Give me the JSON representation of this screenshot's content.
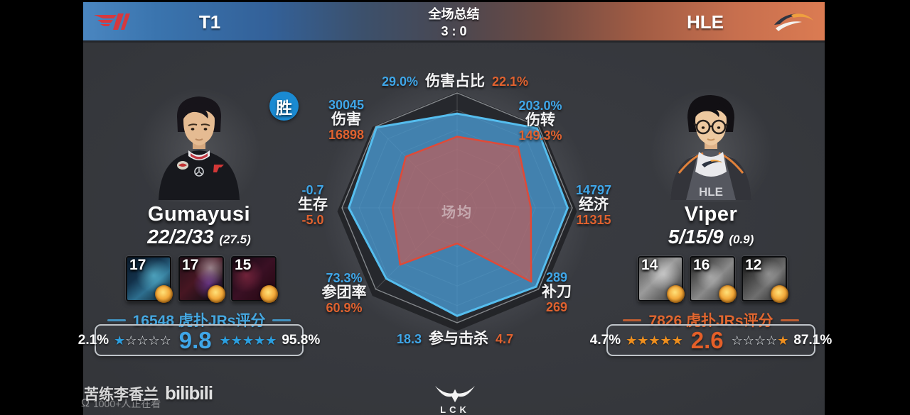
{
  "header": {
    "left_team": "T1",
    "right_team": "HLE",
    "title": "全场总结",
    "score": "3 : 0"
  },
  "players": {
    "left": {
      "name": "Gumayusi",
      "kda": "22/2/33",
      "kda_note": "(27.5)",
      "result_badge": "胜",
      "champions": [
        {
          "level": "17"
        },
        {
          "level": "17"
        },
        {
          "level": "15"
        }
      ],
      "rating_header": "16548 虎扑JRs评分",
      "rating": {
        "low_pct": "2.1%",
        "score": "9.8",
        "high_pct": "95.8%",
        "left_stars": [
          1,
          0,
          0,
          0,
          0
        ],
        "right_stars": [
          1,
          1,
          1,
          1,
          1
        ],
        "star_color": "blue"
      }
    },
    "right": {
      "name": "Viper",
      "kda": "5/15/9",
      "kda_note": "(0.9)",
      "champions": [
        {
          "level": "14"
        },
        {
          "level": "16"
        },
        {
          "level": "12"
        }
      ],
      "rating_header": "7826 虎扑JRs评分",
      "rating": {
        "low_pct": "4.7%",
        "score": "2.6",
        "high_pct": "87.1%",
        "left_stars": [
          1,
          1,
          1,
          1,
          1
        ],
        "right_stars": [
          0,
          0,
          0,
          0,
          1
        ],
        "star_color": "orange"
      }
    }
  },
  "chart_data": {
    "type": "radar",
    "center_label": "场均",
    "legend_note": "blue polygon = T1 Gumayusi, red polygon = HLE Viper",
    "colors": {
      "blue": "#3fa6e8",
      "orange": "#e0622f"
    },
    "axes": [
      {
        "label": "伤害占比",
        "blue_value": "29.0%",
        "orange_value": "22.1%",
        "blue_r": 0.82,
        "orange_r": 0.62
      },
      {
        "label": "伤转",
        "blue_value": "203.0%",
        "orange_value": "149.3%",
        "blue_r": 0.98,
        "orange_r": 0.75
      },
      {
        "label": "经济",
        "blue_value": "14797",
        "orange_value": "11315",
        "blue_r": 0.96,
        "orange_r": 0.64
      },
      {
        "label": "补刀",
        "blue_value": "289",
        "orange_value": "269",
        "blue_r": 0.97,
        "orange_r": 0.91
      },
      {
        "label": "参与击杀",
        "blue_value": "18.3",
        "orange_value": "4.7",
        "blue_r": 0.94,
        "orange_r": 0.31
      },
      {
        "label": "参团率",
        "blue_value": "73.3%",
        "orange_value": "60.9%",
        "blue_r": 0.87,
        "orange_r": 0.7
      },
      {
        "label": "生存",
        "blue_value": "-0.7",
        "orange_value": "-5.0",
        "blue_r": 0.94,
        "orange_r": 0.56
      },
      {
        "label": "伤害",
        "blue_value": "30045",
        "orange_value": "16898",
        "blue_r": 0.99,
        "orange_r": 0.63
      }
    ]
  },
  "footer": {
    "league": "LCK",
    "watermark": "苦练李香兰",
    "platform": "bilibili",
    "viewers": "1000+人正在看"
  }
}
